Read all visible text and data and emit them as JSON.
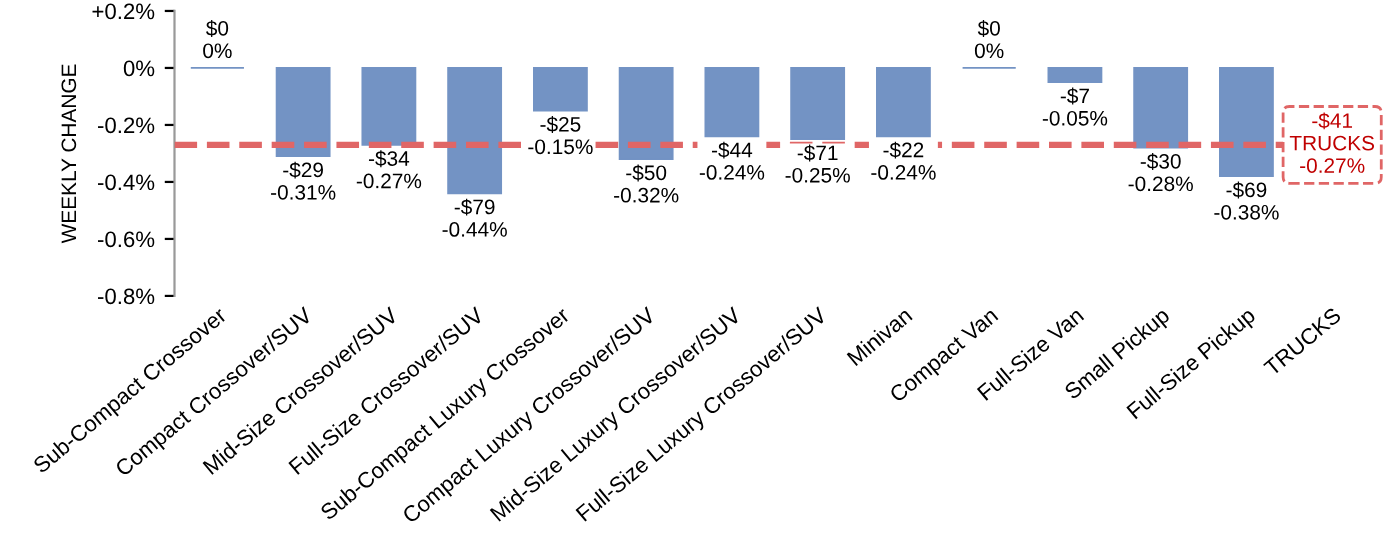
{
  "chart_data": {
    "type": "bar",
    "ylabel": "WEEKLY CHANGE",
    "categories": [
      "Sub-Compact Crossover",
      "Compact Crossover/SUV",
      "Mid-Size Crossover/SUV",
      "Full-Size Crossover/SUV",
      "Sub-Compact Luxury Crossover",
      "Compact Luxury Crossover/SUV",
      "Mid-Size Luxury Crossover/SUV",
      "Full-Size Luxury Crossover/SUV",
      "Minivan",
      "Compact Van",
      "Full-Size Van",
      "Small Pickup",
      "Full-Size Pickup",
      "TRUCKS"
    ],
    "values": [
      0,
      -0.31,
      -0.27,
      -0.44,
      -0.15,
      -0.32,
      -0.24,
      -0.25,
      -0.24,
      0,
      -0.05,
      -0.28,
      -0.38,
      null
    ],
    "value_labels": [
      "$0\n0%",
      "-$29\n-0.31%",
      "-$34\n-0.27%",
      "-$79\n-0.44%",
      "-$25\n-0.15%",
      "-$50\n-0.32%",
      "-$44\n-0.24%",
      "-$71\n-0.25%",
      "-$22\n-0.24%",
      "$0\n0%",
      "-$7\n-0.05%",
      "-$30\n-0.28%",
      "-$69\n-0.38%",
      null
    ],
    "color": "#7393c4",
    "ylim": [
      -0.8,
      0.2
    ],
    "yticks": [
      {
        "value": 0.2,
        "label": "+0.2%"
      },
      {
        "value": 0,
        "label": "0%"
      },
      {
        "value": -0.2,
        "label": "-0.2%"
      },
      {
        "value": -0.4,
        "label": "-0.4%"
      },
      {
        "value": -0.6,
        "label": "-0.6%"
      },
      {
        "value": -0.8,
        "label": "-0.8%"
      }
    ],
    "ref_lines": [
      {
        "axis": "y",
        "value": -0.27,
        "label": "-$41\nTRUCKS\n-0.27%",
        "color": "#e06666",
        "line_style": "dashed"
      }
    ],
    "grid": false,
    "legend": false
  }
}
